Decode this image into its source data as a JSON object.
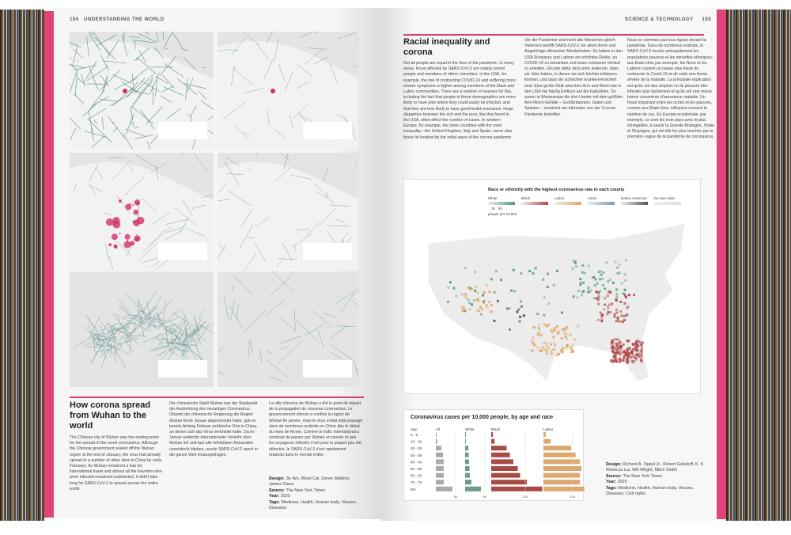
{
  "left_page": {
    "page_number": "154",
    "section": "UNDERSTANDING THE WORLD",
    "title": "How corona spread from Wuhan to the world",
    "text_en": "The Chinese city of Wuhan was the starting point for the spread of the novel coronavirus. Although the Chinese government sealed off the Wuhan region at the end of January, the virus had already spread to a number of other sites in China by early February. As Wuhan remained a hub for international travel and almost all the travelers who were infected remained undetected, it didn't take long for SARS-CoV-2 to spread across the entire world.",
    "text_de": "Die chinesische Stadt Wuhan war der Startpunkt der Ausbreitung des neuartigen Coronavirus. Obwohl die chinesische Regierung die Region Wuhan Ende Januar abgeschottet hatte, gab es bereits Anfang Februar zahlreiche Orte in China, an denen sich das Virus verbreitet hatte. Da im Januar weiterhin internationaler Verkehr über Wuhan lief und fast alle infektiösen Reisenden unentdeckt blieben, wurde SARS-CoV-2 rasch in die ganze Welt hinausgetragen.",
    "text_fr": "La ville chinoise de Wuhan a été le point de départ de la propagation du nouveau coronavirus. Le gouvernement chinois a confiné la région de Wuhan fin janvier, mais le virus s'était déjà propagé dans de nombreux endroits en Chine dès le début du mois de février. Comme le trafic international a continué de passer par Wuhan en janvier et que les voyageurs infectés n'ont pour la plupart pas été détectés, le SARS-CoV-2 s'est rapidement répandu dans le monde entier.",
    "credits": {
      "design_label": "Design:",
      "design": "Jin Wu, Weiyi Cai, Derek Watkins, James Glanz",
      "source_label": "Source:",
      "source": "The New York Times",
      "year_label": "Year:",
      "year": "2020",
      "tags_label": "Tags:",
      "tags": "Medicine, Health, Human body, Viruses, Diseases"
    }
  },
  "right_page": {
    "page_number": "155",
    "section": "SCIENCE & TECHNOLOGY",
    "title": "Racial inequality and corona",
    "text_en": "Not all people are equal in the face of the pandemic. In many areas, those affected by SARS-CoV-2 are mainly poorer people and members of ethnic minorities. In the USA, for example, the risk of contracting COVID-19 and suffering more severe symptoms is higher among members of the black and Latino communities. There are a number of reasons for this, including the fact that people in these demographics are more likely to have jobs where they could easily be infected, and that they are less likely to have good health insurance. Huge disparities between the rich and the poor, like that found in the USA, often affect the number of cases. In western Europe, for example, the three countries with the most inequality—the United Kingdom, Italy and Spain—were also those hit hardest by the initial wave of the corona pandemic.",
    "text_de": "Vor der Pandemie sind nicht alle Menschen gleich. Vielerorts betrifft SARS-CoV-2 vor allem Arme und Angehörige ethnischer Minderheiten: So haben in den USA Schwarze und Latinos ein erhöhtes Risiko, an COVID-19 zu erkranken und einen schweren Verlauf zu erleiden. Gründe dafür sind unter anderem, dass sie Jobs haben, in denen sie sich leichter infizieren können, und dass sie schlechter krankenversichert sind. Eine große Kluft zwischen Arm und Reich wie in den USA hat häufig Einfluss auf die Fallzahlen. So waren in Westeuropa die drei Länder mit dem größten Arm-Reich-Gefälle – Großbritannien, Italien und Spanien – zunächst am härtesten von der Corona-Pandemie betroffen.",
    "text_fr": "Nous ne sommes pas tous égaux devant la pandémie. Dans de nombreux endroits, le SARS-CoV-2 touche principalement les populations pauvres et les minorités ethniques: aux États-Unis par exemple, les Noirs et les Latinos courent un risque plus élevé de contracter le Covid-19 et de subir une forme sévère de la maladie. La principale explication est qu'ils ont des emplois où ils peuvent être infectés plus facilement et qu'ils ont une moins bonne couverture d'assurance maladie. Un fossé important entre les riches et les pauvres, comme aux États-Unis, influence souvent le nombre de cas. En Europe occidentale, par exemple, ce sont les trois pays avec le plus d'inégalités, à savoir la Grande-Bretagne, l'Italie et l'Espagne, qui ont été les plus touchés par la première vague de la pandémie de coronavirus.",
    "map": {
      "title": "Race or ethnicity with the highest coronavirus rate in each county",
      "legend": [
        {
          "label": "White",
          "color": "#5a9a7a"
        },
        {
          "label": "Black",
          "color": "#b04a4a"
        },
        {
          "label": "Latino",
          "color": "#e0a860"
        },
        {
          "label": "Asian",
          "color": "#7a9aa8"
        },
        {
          "label": "Native American",
          "color": "#5a5060"
        },
        {
          "label": "No race data",
          "color": "#dddddd"
        }
      ],
      "scale_ticks": [
        "25",
        "50"
      ],
      "scale_unit": "people per 10,000"
    },
    "credits": {
      "design_label": "Design:",
      "design": "Richard A. Oppel Jr., Robert Gebeloff, K. K. Rebecca Lai, Will Wright, Mitch Smith",
      "source_label": "Source:",
      "source": "The New York Times",
      "year_label": "Year:",
      "year": "2020",
      "tags_label": "Tags:",
      "tags": "Medicine, Health, Human body, Viruses, Diseases, Civil rights"
    }
  },
  "chart_data": {
    "type": "bar",
    "title": "Coronavirus cases per 10,000 people, by age and race",
    "category_label": "Age",
    "categories": [
      "0 - 9",
      "10 - 19",
      "20 - 29",
      "30 - 39",
      "40 - 49",
      "50 - 59",
      "60 - 69",
      "70 - 79",
      "80+"
    ],
    "series": [
      {
        "name": "All",
        "color": "#aaaaaa",
        "tick": "50",
        "values": [
          2,
          4,
          14,
          18,
          20,
          20,
          20,
          20,
          42
        ]
      },
      {
        "name": "White",
        "color": "#6a9e86",
        "tick": "50",
        "values": [
          1,
          2,
          8,
          9,
          10,
          11,
          12,
          16,
          40
        ]
      },
      {
        "name": "Black",
        "color": "#a84a44",
        "tick": "100",
        "values": [
          5,
          10,
          45,
          55,
          65,
          78,
          85,
          105,
          150
        ]
      },
      {
        "name": "Latino",
        "color": "#dba870",
        "tick": "100",
        "values": [
          8,
          25,
          95,
          110,
          125,
          130,
          125,
          125,
          140
        ]
      }
    ]
  }
}
